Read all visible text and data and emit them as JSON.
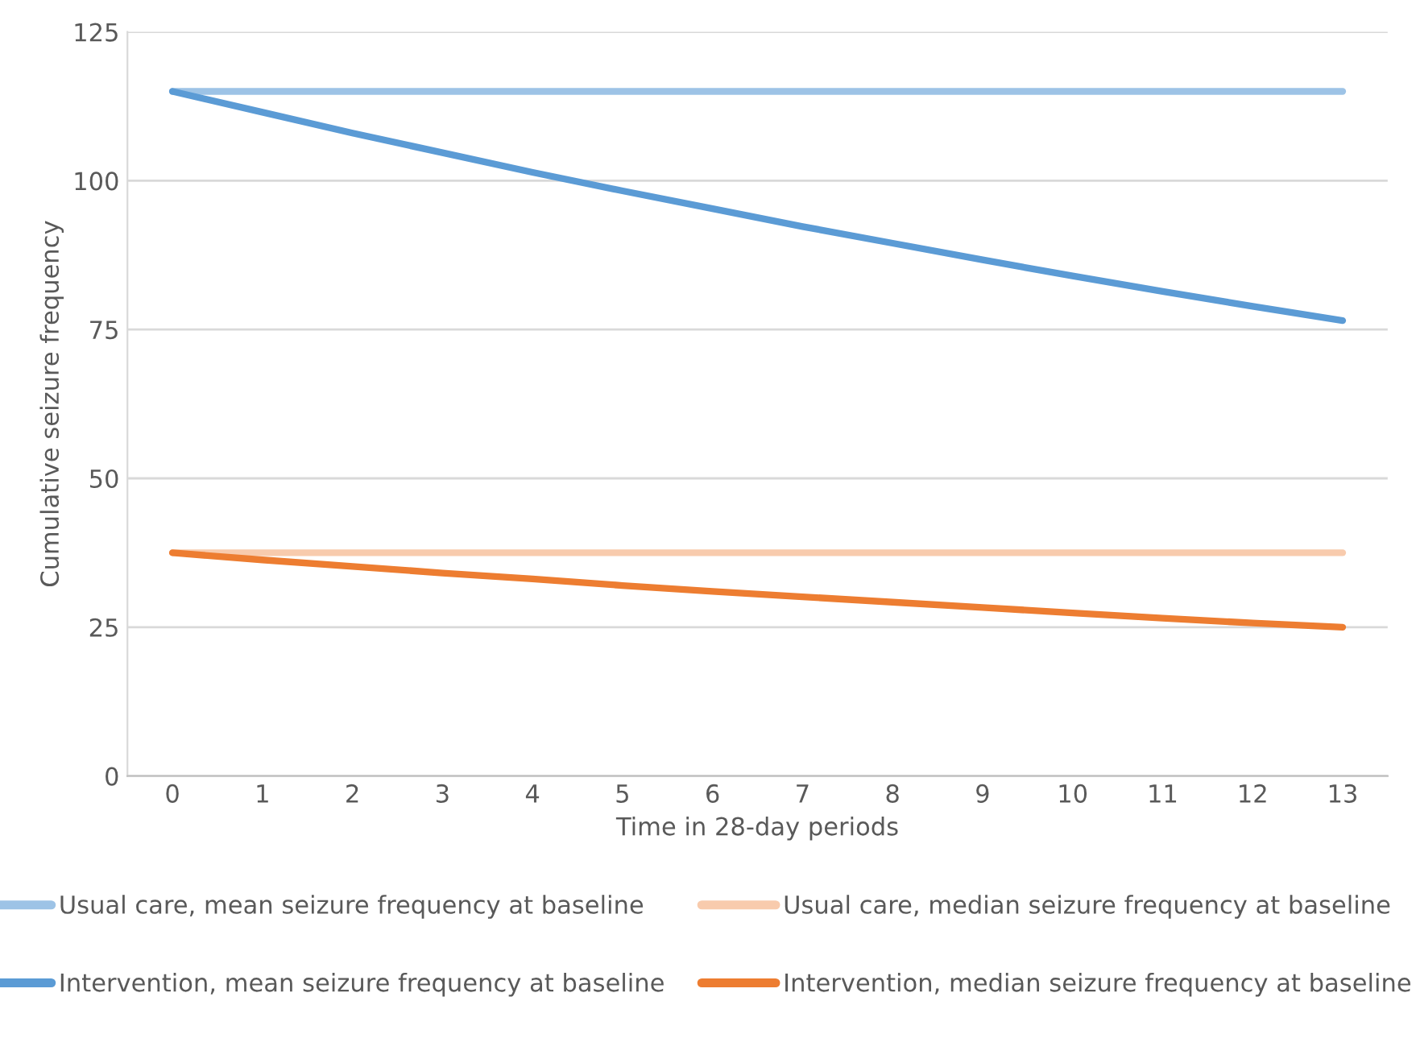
{
  "chart_data": {
    "type": "line",
    "xlabel": "Time in 28-day periods",
    "ylabel": "Cumulative seizure frequency",
    "categories": [
      "0",
      "1",
      "2",
      "3",
      "4",
      "5",
      "6",
      "7",
      "8",
      "9",
      "10",
      "11",
      "12",
      "13"
    ],
    "series": [
      {
        "name": "Usual care, mean seizure frequency at baseline",
        "color": "#9dc3e6",
        "values": [
          115,
          115,
          115,
          115,
          115,
          115,
          115,
          115,
          115,
          115,
          115,
          115,
          115,
          115
        ]
      },
      {
        "name": "Intervention, mean seizure frequency at baseline",
        "color": "#5b9bd5",
        "values": [
          115,
          111.5,
          108,
          104.7,
          101.4,
          98.3,
          95.3,
          92.3,
          89.5,
          86.7,
          84,
          81.4,
          78.9,
          76.5
        ]
      },
      {
        "name": "Usual care, median seizure frequency at baseline",
        "color": "#f8cbad",
        "values": [
          37.5,
          37.5,
          37.5,
          37.5,
          37.5,
          37.5,
          37.5,
          37.5,
          37.5,
          37.5,
          37.5,
          37.5,
          37.5,
          37.5
        ]
      },
      {
        "name": "Intervention, median seizure frequency at baseline",
        "color": "#ed7d31",
        "values": [
          37.5,
          36.3,
          35.2,
          34.1,
          33.1,
          32,
          31,
          30.1,
          29.2,
          28.3,
          27.4,
          26.5,
          25.7,
          25
        ]
      }
    ],
    "ylim": [
      0,
      125
    ],
    "yticks": [
      0,
      25,
      50,
      75,
      100,
      125
    ],
    "grid": "y",
    "legend": "bottom",
    "marker": "none",
    "line_style": "solid"
  }
}
